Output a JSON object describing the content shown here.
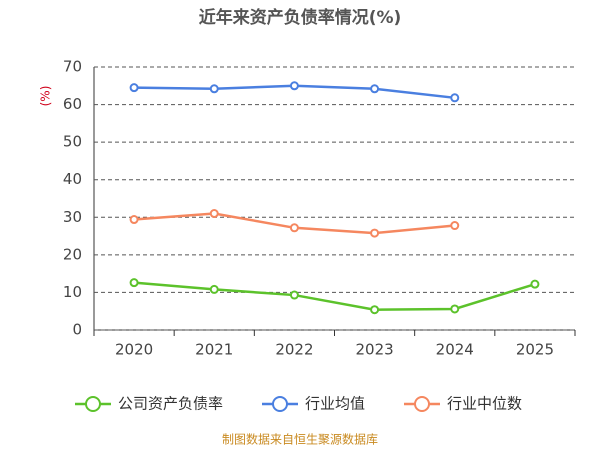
{
  "chart_data": {
    "type": "line",
    "title": "近年来资产负债率情况(%)",
    "y_label": "(%)",
    "source": "制图数据来自恒生聚源数据库",
    "categories": [
      "2020",
      "2021",
      "2022",
      "2023",
      "2024",
      "2025"
    ],
    "series": [
      {
        "name": "公司资产负债率",
        "color": "#5cc22b",
        "values": [
          12.6,
          10.8,
          9.3,
          5.4,
          5.6,
          12.2
        ]
      },
      {
        "name": "行业均值",
        "color": "#4a7fe0",
        "values": [
          64.5,
          64.2,
          65.0,
          64.2,
          61.8,
          null
        ]
      },
      {
        "name": "行业中位数",
        "color": "#f5875f",
        "values": [
          29.4,
          31.0,
          27.2,
          25.8,
          27.8,
          null
        ]
      }
    ],
    "ylim": [
      0,
      70
    ],
    "yticks": [
      0,
      10,
      20,
      30,
      40,
      50,
      60,
      70
    ],
    "grid": true
  }
}
